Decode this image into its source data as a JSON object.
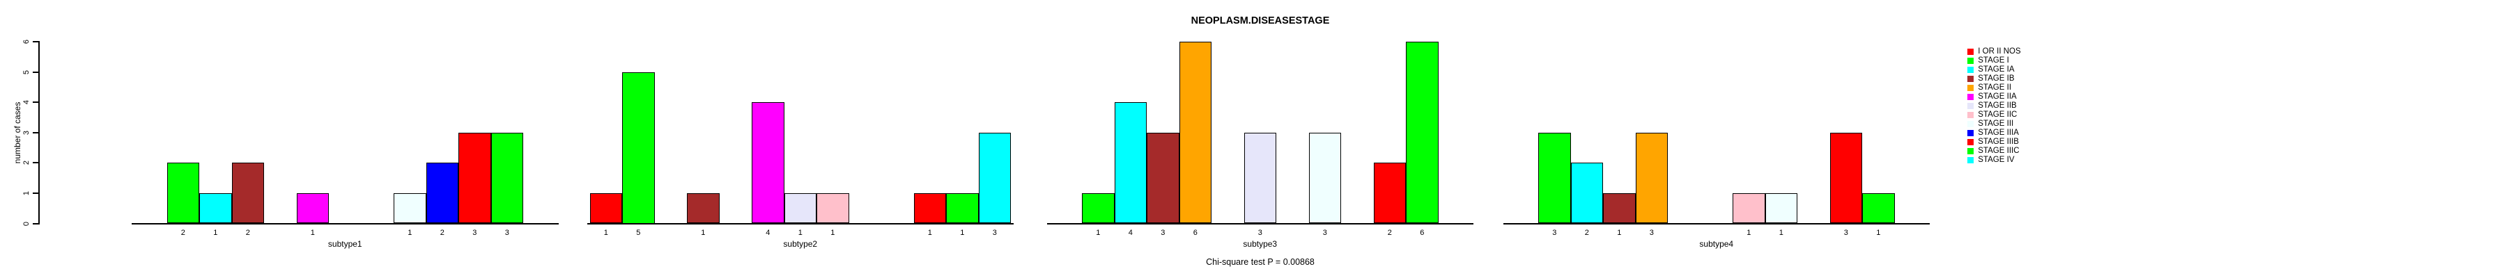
{
  "chart_data": {
    "type": "bar",
    "title": "NEOPLASM.DISEASESTAGE",
    "ylabel": "number of cases",
    "xlabel": "",
    "annotation": "Chi-square test P = 0.00868",
    "ylim": [
      0,
      6
    ],
    "yticks": [
      0,
      1,
      2,
      3,
      4,
      5,
      6
    ],
    "grid": false,
    "legend_position": "right",
    "bar_value_labels": true,
    "stages": [
      {
        "name": "I OR II NOS",
        "color": "#FF0000"
      },
      {
        "name": "STAGE I",
        "color": "#00FF00"
      },
      {
        "name": "STAGE IA",
        "color": "#00FFFF"
      },
      {
        "name": "STAGE IB",
        "color": "#A52A2A"
      },
      {
        "name": "STAGE II",
        "color": "#FFA500"
      },
      {
        "name": "STAGE IIA",
        "color": "#FF00FF"
      },
      {
        "name": "STAGE IIB",
        "color": "#E6E6FA"
      },
      {
        "name": "STAGE IIC",
        "color": "#FFC0CB"
      },
      {
        "name": "STAGE III",
        "color": "#F0FFFF"
      },
      {
        "name": "STAGE IIIA",
        "color": "#0000FF"
      },
      {
        "name": "STAGE IIIB",
        "color": "#FF0000"
      },
      {
        "name": "STAGE IIIC",
        "color": "#00FF00"
      },
      {
        "name": "STAGE IV",
        "color": "#00FFFF"
      }
    ],
    "groups": [
      {
        "label": "subtype1",
        "bars": [
          {
            "stage": "STAGE I",
            "value": 2
          },
          {
            "stage": "STAGE IA",
            "value": 1
          },
          {
            "stage": "STAGE IB",
            "value": 2
          },
          {
            "stage": "STAGE IIA",
            "value": 1
          },
          {
            "stage": "STAGE III",
            "value": 1
          },
          {
            "stage": "STAGE IIIA",
            "value": 2
          },
          {
            "stage": "STAGE IIIB",
            "value": 3
          },
          {
            "stage": "STAGE IIIC",
            "value": 3
          }
        ]
      },
      {
        "label": "subtype2",
        "bars": [
          {
            "stage": "I OR II NOS",
            "value": 1
          },
          {
            "stage": "STAGE I",
            "value": 5
          },
          {
            "stage": "STAGE IB",
            "value": 1
          },
          {
            "stage": "STAGE IIA",
            "value": 4
          },
          {
            "stage": "STAGE IIB",
            "value": 1
          },
          {
            "stage": "STAGE IIC",
            "value": 1
          },
          {
            "stage": "STAGE IIIB",
            "value": 1
          },
          {
            "stage": "STAGE IIIC",
            "value": 1
          },
          {
            "stage": "STAGE IV",
            "value": 3
          }
        ]
      },
      {
        "label": "subtype3",
        "bars": [
          {
            "stage": "STAGE I",
            "value": 1
          },
          {
            "stage": "STAGE IA",
            "value": 4
          },
          {
            "stage": "STAGE IB",
            "value": 3
          },
          {
            "stage": "STAGE II",
            "value": 6
          },
          {
            "stage": "STAGE IIB",
            "value": 3
          },
          {
            "stage": "STAGE III",
            "value": 3
          },
          {
            "stage": "STAGE IIIB",
            "value": 2
          },
          {
            "stage": "STAGE IIIC",
            "value": 6
          }
        ]
      },
      {
        "label": "subtype4",
        "bars": [
          {
            "stage": "STAGE I",
            "value": 3
          },
          {
            "stage": "STAGE IA",
            "value": 2
          },
          {
            "stage": "STAGE IB",
            "value": 1
          },
          {
            "stage": "STAGE II",
            "value": 3
          },
          {
            "stage": "STAGE IIC",
            "value": 1
          },
          {
            "stage": "STAGE III",
            "value": 1
          },
          {
            "stage": "STAGE IIIB",
            "value": 3
          },
          {
            "stage": "STAGE IIIC",
            "value": 1
          }
        ]
      }
    ]
  }
}
